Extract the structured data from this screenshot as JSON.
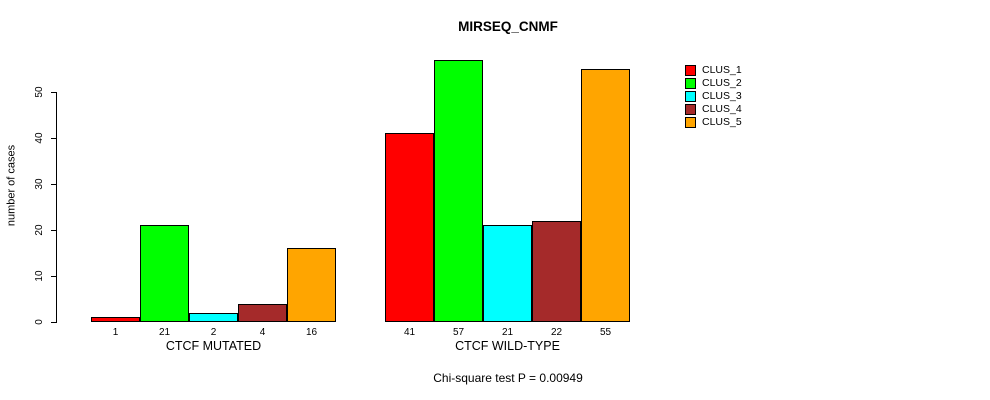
{
  "chart_data": {
    "type": "bar",
    "title": "MIRSEQ_CNMF",
    "ylabel": "number of cases",
    "xlabel": "",
    "subtitle": "Chi-square test P = 0.00949",
    "ylim": [
      0,
      57
    ],
    "yticks": [
      0,
      10,
      20,
      30,
      40,
      50
    ],
    "grid": false,
    "legend_position": "right",
    "series": [
      {
        "name": "CLUS_1",
        "color": "#FF0000"
      },
      {
        "name": "CLUS_2",
        "color": "#00FF00"
      },
      {
        "name": "CLUS_3",
        "color": "#00FFFF"
      },
      {
        "name": "CLUS_4",
        "color": "#A52A2A"
      },
      {
        "name": "CLUS_5",
        "color": "#FFA500"
      }
    ],
    "groups": [
      {
        "label": "CTCF MUTATED",
        "values": [
          1,
          21,
          2,
          4,
          16
        ]
      },
      {
        "label": "CTCF WILD-TYPE",
        "values": [
          41,
          57,
          21,
          22,
          55
        ]
      }
    ],
    "bar_value_labels_shown": true
  }
}
